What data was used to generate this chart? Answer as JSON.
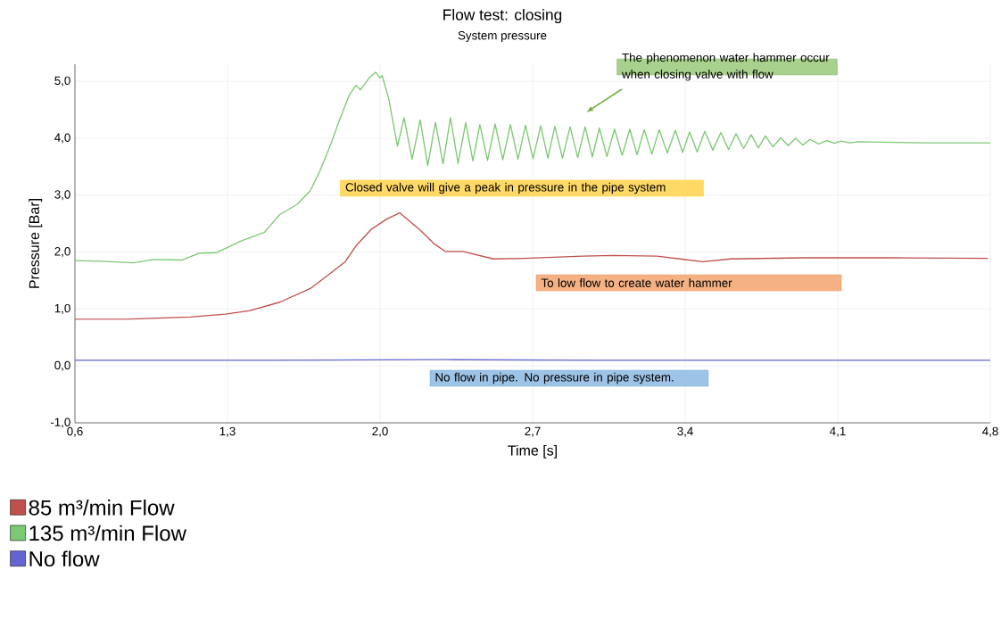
{
  "chart_data": {
    "type": "line",
    "title": "Flow test: closing",
    "subtitle": "System pressure",
    "xlabel": "Time [s]",
    "ylabel": "Pressure [Bar]",
    "xlim": [
      0.6,
      4.8
    ],
    "ylim": [
      -1,
      5.3
    ],
    "xticks": [
      {
        "value": 0.6,
        "label": "0,6"
      },
      {
        "value": 1.3,
        "label": "1,3"
      },
      {
        "value": 2.0,
        "label": "2,0"
      },
      {
        "value": 2.7,
        "label": "2,7"
      },
      {
        "value": 3.4,
        "label": "3,4"
      },
      {
        "value": 4.1,
        "label": "4,1"
      },
      {
        "value": 4.8,
        "label": "4,8"
      }
    ],
    "yticks": [
      {
        "value": -1,
        "label": "-1,0"
      },
      {
        "value": 0,
        "label": "0,0"
      },
      {
        "value": 1,
        "label": "1,0"
      },
      {
        "value": 2,
        "label": "2,0"
      },
      {
        "value": 3,
        "label": "3,0"
      },
      {
        "value": 4,
        "label": "4,0"
      },
      {
        "value": 5,
        "label": "5,0"
      }
    ],
    "grid": true,
    "legend": "bottom",
    "marker": "none",
    "line_style": "solid",
    "series": [
      {
        "name": "85 m³/min Flow",
        "color": "#c0504d",
        "x": [
          0.6,
          0.83,
          1.13,
          1.29,
          1.4,
          1.54,
          1.68,
          1.77,
          1.84,
          1.89,
          1.96,
          2.03,
          2.09,
          2.18,
          2.25,
          2.3,
          2.38,
          2.52,
          2.66,
          2.93,
          3.07,
          3.27,
          3.48,
          3.61,
          3.94,
          4.35,
          4.79
        ],
        "values": [
          0.82,
          0.82,
          0.86,
          0.91,
          0.97,
          1.12,
          1.36,
          1.62,
          1.83,
          2.11,
          2.4,
          2.58,
          2.69,
          2.4,
          2.14,
          2.01,
          2.01,
          1.88,
          1.89,
          1.93,
          1.94,
          1.93,
          1.83,
          1.88,
          1.9,
          1.9,
          1.89
        ]
      },
      {
        "name": "135 m³/min Flow",
        "color": "#7cc874",
        "x": [
          0.6,
          0.72,
          0.87,
          0.96,
          1.09,
          1.17,
          1.25,
          1.36,
          1.47,
          1.54,
          1.62,
          1.68,
          1.72,
          1.76,
          1.78,
          1.81,
          1.86,
          1.89,
          1.91,
          1.95,
          1.98,
          2.0,
          2.01,
          2.04,
          2.08,
          2.11,
          2.147,
          2.184,
          2.219,
          2.254,
          2.289,
          2.323,
          2.358,
          2.393,
          2.426,
          2.458,
          2.493,
          2.528,
          2.563,
          2.598,
          2.633,
          2.667,
          2.702,
          2.737,
          2.77,
          2.802,
          2.837,
          2.872,
          2.907,
          2.941,
          2.974,
          3.006,
          3.041,
          3.076,
          3.111,
          3.146,
          3.179,
          3.212,
          3.247,
          3.281,
          3.318,
          3.355,
          3.388,
          3.42,
          3.455,
          3.49,
          3.527,
          3.564,
          3.599,
          3.633,
          3.668,
          3.703,
          3.736,
          3.768,
          3.803,
          3.838,
          3.873,
          3.907,
          3.94,
          3.973,
          4.012,
          4.051,
          4.084,
          4.116,
          4.155,
          4.194,
          4.3,
          4.5,
          4.8
        ],
        "values": [
          1.85,
          1.84,
          1.81,
          1.87,
          1.86,
          1.98,
          1.99,
          2.19,
          2.35,
          2.66,
          2.84,
          3.08,
          3.39,
          3.76,
          3.96,
          4.28,
          4.77,
          4.93,
          4.85,
          5.06,
          5.16,
          5.06,
          5.1,
          4.69,
          3.86,
          4.36,
          3.63,
          4.32,
          3.52,
          4.28,
          3.55,
          4.36,
          3.56,
          4.27,
          3.6,
          4.24,
          3.61,
          4.25,
          3.62,
          4.24,
          3.63,
          4.23,
          3.64,
          4.22,
          3.65,
          4.21,
          3.65,
          4.2,
          3.66,
          4.2,
          3.67,
          4.18,
          3.68,
          4.16,
          3.7,
          4.16,
          3.71,
          4.15,
          3.72,
          4.15,
          3.74,
          4.14,
          3.75,
          4.11,
          3.76,
          4.12,
          3.79,
          4.1,
          3.8,
          4.08,
          3.82,
          4.06,
          3.83,
          4.04,
          3.85,
          4.01,
          3.87,
          4.0,
          3.88,
          3.98,
          3.9,
          3.96,
          3.91,
          3.95,
          3.92,
          3.94,
          3.93,
          3.92,
          3.92
        ]
      },
      {
        "name": "No flow",
        "color": "#6464d2",
        "x": [
          0.6,
          1.5,
          2.3,
          3.0,
          4.8
        ],
        "values": [
          0.1,
          0.1,
          0.11,
          0.1,
          0.1
        ]
      }
    ],
    "annotations": [
      "The phenomenon water hammer occur when closing valve with flow",
      "Closed valve will give a peak in pressure in the pipe system",
      "To low flow to create water hammer",
      "No flow in pipe. No pressure in pipe system."
    ]
  }
}
